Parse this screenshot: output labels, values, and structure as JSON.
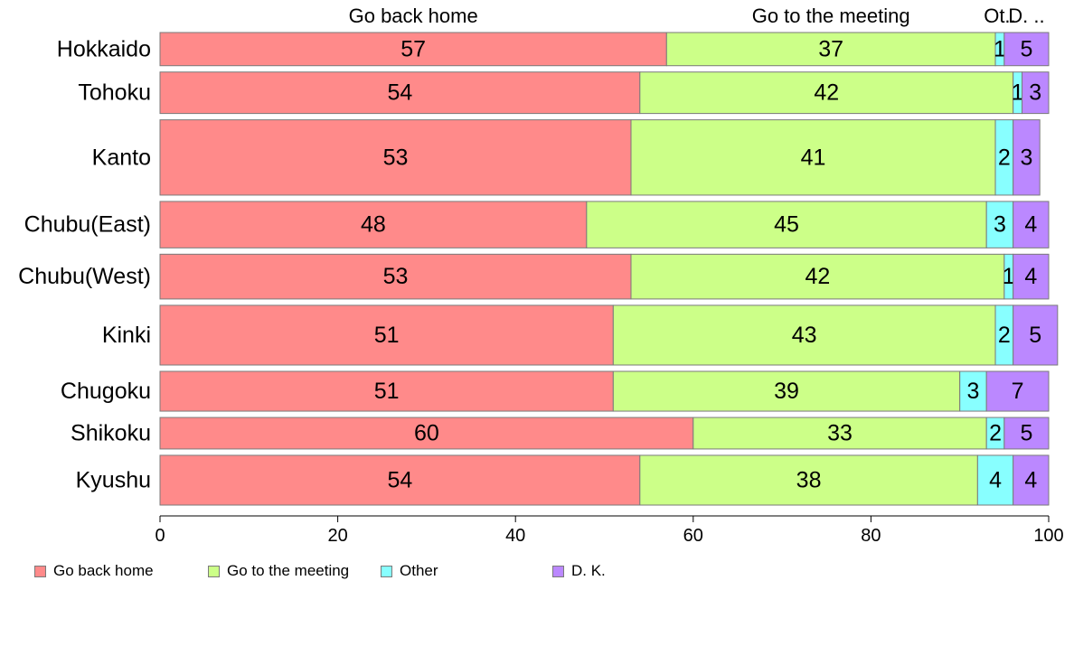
{
  "chart_data": {
    "type": "bar",
    "orientation": "horizontal",
    "stacked": true,
    "title": "",
    "xlabel": "",
    "ylabel": "",
    "xlim": [
      0,
      100
    ],
    "x_ticks": [
      0,
      20,
      40,
      60,
      80,
      100
    ],
    "grid": false,
    "legend_position": "bottom-left",
    "categories": [
      "Hokkaido",
      "Tohoku",
      "Kanto",
      "Chubu(East)",
      "Chubu(West)",
      "Kinki",
      "Chugoku",
      "Shikoku",
      "Kyushu"
    ],
    "category_weights": [
      1.0,
      1.25,
      2.27,
      1.4,
      1.35,
      1.8,
      1.2,
      0.95,
      1.5
    ],
    "series": [
      {
        "name": "Go back home",
        "color": "#ff8a8a",
        "values": [
          57,
          54,
          53,
          48,
          53,
          51,
          51,
          60,
          54
        ]
      },
      {
        "name": "Go to the meeting",
        "color": "#ccff88",
        "values": [
          37,
          42,
          41,
          45,
          42,
          43,
          39,
          33,
          38
        ]
      },
      {
        "name": "Other",
        "color": "#88ffff",
        "values": [
          1,
          1,
          2,
          3,
          1,
          2,
          3,
          2,
          4
        ]
      },
      {
        "name": "D. K.",
        "color": "#bb88ff",
        "values": [
          5,
          3,
          3,
          4,
          4,
          5,
          7,
          5,
          4
        ]
      }
    ],
    "top_labels": [
      "Go back home",
      "Go to the meeting",
      "Ot..",
      "D. .."
    ]
  }
}
